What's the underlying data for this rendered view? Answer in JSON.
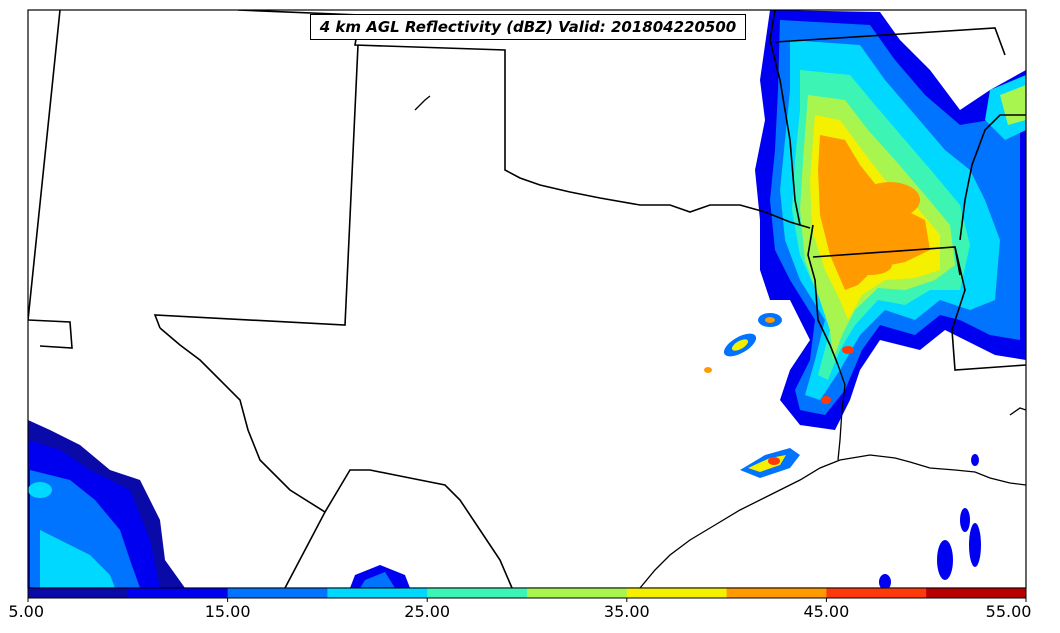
{
  "map": {
    "title": "4 km AGL Reflectivity (dBZ) Valid: 201804220500",
    "variable": "reflectivity",
    "units": "dBZ",
    "valid_time": "201804220500",
    "region_features": [
      "state-borders",
      "coastline",
      "lakes"
    ]
  },
  "colorbar": {
    "min": 5.0,
    "max": 55.0,
    "step": 5.0,
    "ticks": [
      "5.00",
      "15.00",
      "25.00",
      "35.00",
      "45.00",
      "55.00"
    ],
    "colors": [
      "#0a0aa8",
      "#0000f0",
      "#0074ff",
      "#00d8ff",
      "#3cf5b4",
      "#a8f550",
      "#f5f000",
      "#ff9a00",
      "#ff3a0a",
      "#b80000"
    ]
  }
}
